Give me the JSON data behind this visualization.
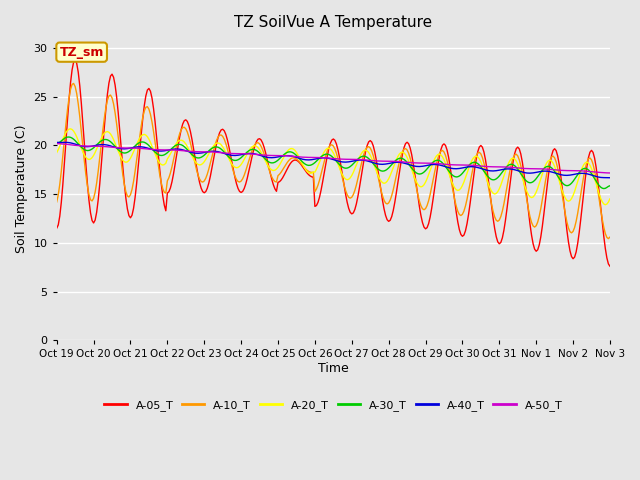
{
  "title": "TZ SoilVue A Temperature",
  "ylabel": "Soil Temperature (C)",
  "xlabel": "Time",
  "annotation": "TZ_sm",
  "ylim": [
    0,
    31
  ],
  "yticks": [
    0,
    5,
    10,
    15,
    20,
    25,
    30
  ],
  "series": [
    "A-05_T",
    "A-10_T",
    "A-20_T",
    "A-30_T",
    "A-40_T",
    "A-50_T"
  ],
  "series_colors": [
    "#ff0000",
    "#ff9900",
    "#ffff00",
    "#00cc00",
    "#0000dd",
    "#cc00cc"
  ],
  "xtick_labels": [
    "Oct 19",
    "Oct 20",
    "Oct 21",
    "Oct 22",
    "Oct 23",
    "Oct 24",
    "Oct 25",
    "Oct 26",
    "Oct 27",
    "Oct 28",
    "Oct 29",
    "Oct 30",
    "Oct 31",
    "Nov 1",
    "Nov 2",
    "Nov 3"
  ],
  "bg_color": "#e6e6e6",
  "fig_color": "#e6e6e6",
  "grid_color": "#ffffff",
  "figsize": [
    6.4,
    4.8
  ],
  "dpi": 100
}
